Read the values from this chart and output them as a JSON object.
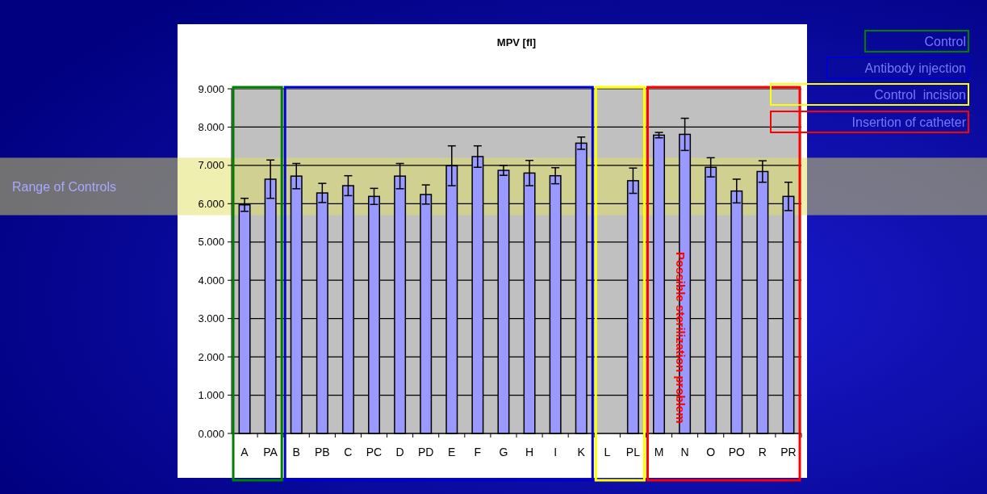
{
  "chart_data": {
    "type": "bar",
    "title": "MPV [fl]",
    "categories": [
      "A",
      "PA",
      "B",
      "PB",
      "C",
      "PC",
      "D",
      "PD",
      "E",
      "F",
      "G",
      "H",
      "I",
      "K",
      "L",
      "PL",
      "M",
      "N",
      "O",
      "PO",
      "R",
      "PR"
    ],
    "values": [
      5.97,
      6.64,
      6.72,
      6.28,
      6.47,
      6.19,
      6.72,
      6.24,
      6.99,
      7.23,
      6.87,
      6.8,
      6.73,
      7.58,
      null,
      6.6,
      7.79,
      7.81,
      6.95,
      6.33,
      6.84,
      6.19
    ],
    "errors": [
      0.17,
      0.5,
      0.33,
      0.25,
      0.26,
      0.21,
      0.33,
      0.25,
      0.52,
      0.28,
      0.13,
      0.33,
      0.21,
      0.16,
      null,
      0.33,
      0.07,
      0.42,
      0.25,
      0.31,
      0.28,
      0.37
    ],
    "color": "#9999ff",
    "ylim": [
      0,
      9
    ],
    "yticks": [
      {
        "value": 0,
        "label": "0.000"
      },
      {
        "value": 1,
        "label": "1.000"
      },
      {
        "value": 2,
        "label": "2.000"
      },
      {
        "value": 3,
        "label": "3.000"
      },
      {
        "value": 4,
        "label": "4.000"
      },
      {
        "value": 5,
        "label": "5.000"
      },
      {
        "value": 6,
        "label": "6.000"
      },
      {
        "value": 7,
        "label": "7.000"
      },
      {
        "value": 8,
        "label": "8.000"
      },
      {
        "value": 9,
        "label": "9.000"
      }
    ],
    "grid": "y",
    "bands": [
      {
        "axis": "y",
        "from": 5.7,
        "to": 7.2,
        "label": "Range of Controls",
        "color": "#e0e060"
      }
    ],
    "annotations": [
      "Control",
      "Antibody injection",
      "Control  incision",
      "Insertion of catheter",
      "Possible sterilization problem"
    ]
  }
}
